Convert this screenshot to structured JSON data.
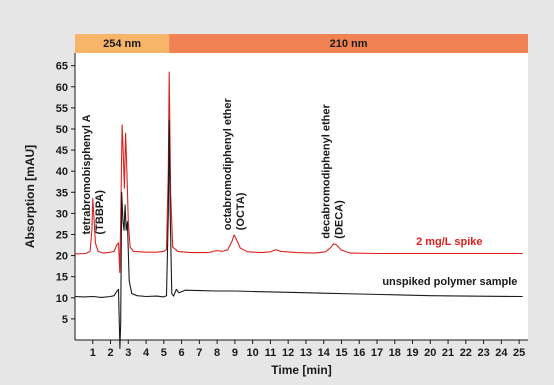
{
  "chart_data": {
    "type": "line",
    "xlabel": "Time [min]",
    "ylabel": "Absorption [mAU]",
    "xlim": [
      0,
      25.5
    ],
    "ylim": [
      0,
      68
    ],
    "x_ticks": [
      1,
      2,
      3,
      4,
      5,
      6,
      7,
      8,
      9,
      10,
      11,
      12,
      13,
      14,
      15,
      16,
      17,
      18,
      19,
      20,
      21,
      22,
      23,
      24,
      25
    ],
    "y_ticks": [
      5,
      10,
      15,
      20,
      25,
      30,
      35,
      40,
      45,
      50,
      55,
      60,
      65
    ],
    "grid": false,
    "wavelength_bands": [
      {
        "label": "254 nm",
        "x_start": 0,
        "x_end": 5.3,
        "color": "#f7b56a"
      },
      {
        "label": "210 nm",
        "x_start": 5.3,
        "x_end": 25.5,
        "color": "#f08254"
      }
    ],
    "annotations": [
      {
        "text": [
          "tetrabromobisphenyl A",
          "(TBBPA)"
        ],
        "x": 1.0,
        "y_bottom": 25
      },
      {
        "text": [
          "octabromodiphenyl ether",
          "(OCTA)"
        ],
        "x": 8.95,
        "y_bottom": 26
      },
      {
        "text": [
          "decabromodiphenyl ether",
          "(DECA)"
        ],
        "x": 14.5,
        "y_bottom": 24
      }
    ],
    "series": [
      {
        "name": "2 mg/L spike",
        "color": "#e0201f",
        "label_at": [
          19.2,
          22.5
        ],
        "points": [
          [
            0,
            20.4
          ],
          [
            0.6,
            20.5
          ],
          [
            0.85,
            21
          ],
          [
            0.95,
            26
          ],
          [
            1.0,
            33.5
          ],
          [
            1.05,
            30
          ],
          [
            1.15,
            23
          ],
          [
            1.3,
            21
          ],
          [
            1.6,
            20.6
          ],
          [
            2.0,
            20.8
          ],
          [
            2.2,
            21
          ],
          [
            2.35,
            22.5
          ],
          [
            2.45,
            23
          ],
          [
            2.52,
            16
          ],
          [
            2.58,
            30
          ],
          [
            2.65,
            51
          ],
          [
            2.72,
            44
          ],
          [
            2.78,
            36
          ],
          [
            2.85,
            49
          ],
          [
            2.92,
            40
          ],
          [
            3.0,
            28
          ],
          [
            3.1,
            22
          ],
          [
            3.3,
            21
          ],
          [
            4.0,
            20.8
          ],
          [
            4.6,
            20.8
          ],
          [
            5.0,
            21
          ],
          [
            5.15,
            21.5
          ],
          [
            5.25,
            40
          ],
          [
            5.3,
            63.5
          ],
          [
            5.38,
            35
          ],
          [
            5.5,
            22
          ],
          [
            5.8,
            21
          ],
          [
            6.5,
            20.7
          ],
          [
            7.5,
            20.7
          ],
          [
            8.0,
            21.2
          ],
          [
            8.3,
            21
          ],
          [
            8.6,
            21.4
          ],
          [
            8.85,
            23.5
          ],
          [
            8.95,
            24.9
          ],
          [
            9.05,
            24.2
          ],
          [
            9.3,
            21.8
          ],
          [
            9.7,
            20.9
          ],
          [
            10.5,
            20.7
          ],
          [
            11.0,
            20.9
          ],
          [
            11.3,
            21.4
          ],
          [
            11.6,
            21
          ],
          [
            12.5,
            20.7
          ],
          [
            13.5,
            20.6
          ],
          [
            14.1,
            20.9
          ],
          [
            14.4,
            21.9
          ],
          [
            14.55,
            22.8
          ],
          [
            14.7,
            22.6
          ],
          [
            15.0,
            21.3
          ],
          [
            15.5,
            20.6
          ],
          [
            17,
            20.5
          ],
          [
            20,
            20.5
          ],
          [
            23,
            20.5
          ],
          [
            25.2,
            20.5
          ]
        ]
      },
      {
        "name": "unspiked polymer sample",
        "color": "#1a1a1a",
        "label_at": [
          17.3,
          13.0
        ],
        "points": [
          [
            0,
            10.3
          ],
          [
            0.5,
            10.2
          ],
          [
            1.0,
            10.3
          ],
          [
            1.5,
            10.1
          ],
          [
            2.0,
            10.3
          ],
          [
            2.2,
            10.5
          ],
          [
            2.35,
            11.5
          ],
          [
            2.45,
            12
          ],
          [
            2.5,
            3
          ],
          [
            2.53,
            -2
          ],
          [
            2.57,
            4
          ],
          [
            2.63,
            35
          ],
          [
            2.7,
            28
          ],
          [
            2.76,
            26
          ],
          [
            2.82,
            32
          ],
          [
            2.88,
            26
          ],
          [
            2.95,
            28
          ],
          [
            3.05,
            14
          ],
          [
            3.2,
            11
          ],
          [
            3.5,
            10.5
          ],
          [
            4.0,
            10.3
          ],
          [
            4.6,
            10.4
          ],
          [
            5.0,
            10.2
          ],
          [
            5.15,
            10.5
          ],
          [
            5.25,
            30
          ],
          [
            5.3,
            52
          ],
          [
            5.36,
            30
          ],
          [
            5.45,
            11
          ],
          [
            5.55,
            10.4
          ],
          [
            5.7,
            12
          ],
          [
            5.85,
            11.2
          ],
          [
            6.2,
            11.8
          ],
          [
            7,
            11.7
          ],
          [
            8,
            11.6
          ],
          [
            9,
            11.6
          ],
          [
            10,
            11.5
          ],
          [
            12,
            11.3
          ],
          [
            14,
            11.1
          ],
          [
            16,
            10.9
          ],
          [
            18,
            10.7
          ],
          [
            20,
            10.5
          ],
          [
            22,
            10.4
          ],
          [
            25.2,
            10.3
          ]
        ]
      }
    ]
  }
}
